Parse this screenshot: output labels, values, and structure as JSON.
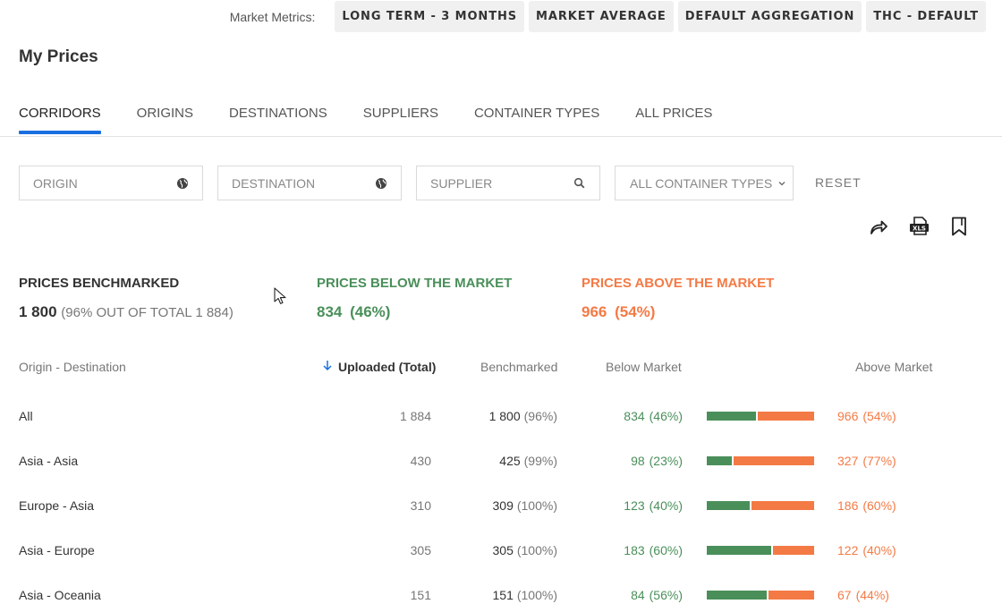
{
  "market_metrics": {
    "label": "Market Metrics:",
    "chips": [
      "LONG TERM - 3 MONTHS",
      "MARKET AVERAGE",
      "DEFAULT AGGREGATION",
      "THC - DEFAULT"
    ]
  },
  "page_title": "My Prices",
  "tabs": [
    "CORRIDORS",
    "ORIGINS",
    "DESTINATIONS",
    "SUPPLIERS",
    "CONTAINER TYPES",
    "ALL PRICES"
  ],
  "active_tab": "CORRIDORS",
  "filters": {
    "origin_placeholder": "ORIGIN",
    "destination_placeholder": "DESTINATION",
    "supplier_placeholder": "SUPPLIER",
    "container_select": "ALL CONTAINER TYPES",
    "reset_label": "RESET"
  },
  "actions": [
    "share-icon",
    "xls-export-icon",
    "bookmark-icon"
  ],
  "stats": {
    "benchmarked": {
      "label": "PRICES BENCHMARKED",
      "value": "1 800",
      "detail": "(96%  OUT OF TOTAL 1 884)"
    },
    "below": {
      "label": "PRICES BELOW THE MARKET",
      "value": "834",
      "pct": "(46%)"
    },
    "above": {
      "label": "PRICES ABOVE THE MARKET",
      "value": "966",
      "pct": "(54%)"
    }
  },
  "colors": {
    "accent": "#1a6fe0",
    "below": "#4a8f5a",
    "above": "#f47a45"
  },
  "table": {
    "headers": {
      "name": "Origin - Destination",
      "uploaded": "Uploaded (Total)",
      "benchmarked": "Benchmarked",
      "below": "Below Market",
      "above": "Above Market"
    },
    "sort_icon": "arrow-down-icon",
    "rows": [
      {
        "name": "All",
        "uploaded": "1 884",
        "benchmarked": "1 800",
        "benchmarked_pct": "(96%)",
        "below": "834",
        "below_pct": "(46%)",
        "above": "966",
        "above_pct": "(54%)",
        "below_share": 0.46
      },
      {
        "name": "Asia - Asia",
        "uploaded": "430",
        "benchmarked": "425",
        "benchmarked_pct": "(99%)",
        "below": "98",
        "below_pct": "(23%)",
        "above": "327",
        "above_pct": "(77%)",
        "below_share": 0.23
      },
      {
        "name": "Europe - Asia",
        "uploaded": "310",
        "benchmarked": "309",
        "benchmarked_pct": "(100%)",
        "below": "123",
        "below_pct": "(40%)",
        "above": "186",
        "above_pct": "(60%)",
        "below_share": 0.4
      },
      {
        "name": "Asia - Europe",
        "uploaded": "305",
        "benchmarked": "305",
        "benchmarked_pct": "(100%)",
        "below": "183",
        "below_pct": "(60%)",
        "above": "122",
        "above_pct": "(40%)",
        "below_share": 0.6
      },
      {
        "name": "Asia - Oceania",
        "uploaded": "151",
        "benchmarked": "151",
        "benchmarked_pct": "(100%)",
        "below": "84",
        "below_pct": "(56%)",
        "above": "67",
        "above_pct": "(44%)",
        "below_share": 0.56
      }
    ]
  }
}
